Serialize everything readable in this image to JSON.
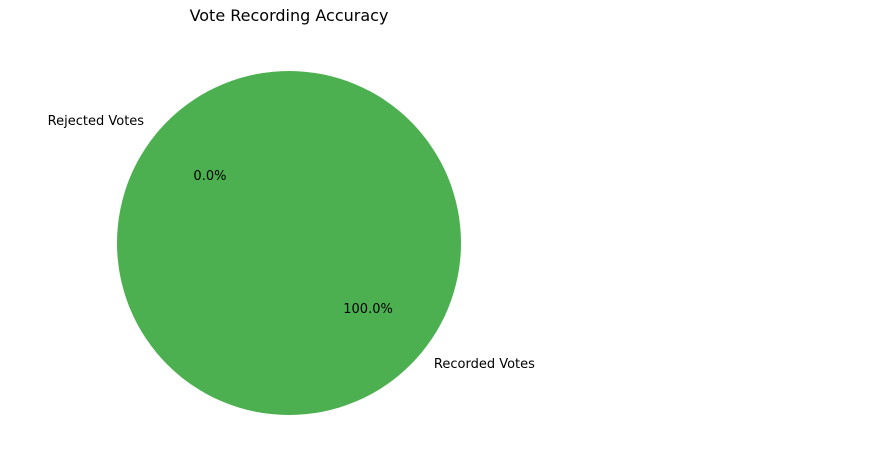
{
  "chart_data": {
    "type": "pie",
    "title": "Vote Recording Accuracy",
    "slices": [
      {
        "label": "Recorded Votes",
        "value": 100.0,
        "pct_text": "100.0%",
        "color": "#4caf50"
      },
      {
        "label": "Rejected Votes",
        "value": 0.0,
        "pct_text": "0.0%",
        "color": "#f44336"
      }
    ],
    "start_angle_deg": 140,
    "legend": "none"
  }
}
